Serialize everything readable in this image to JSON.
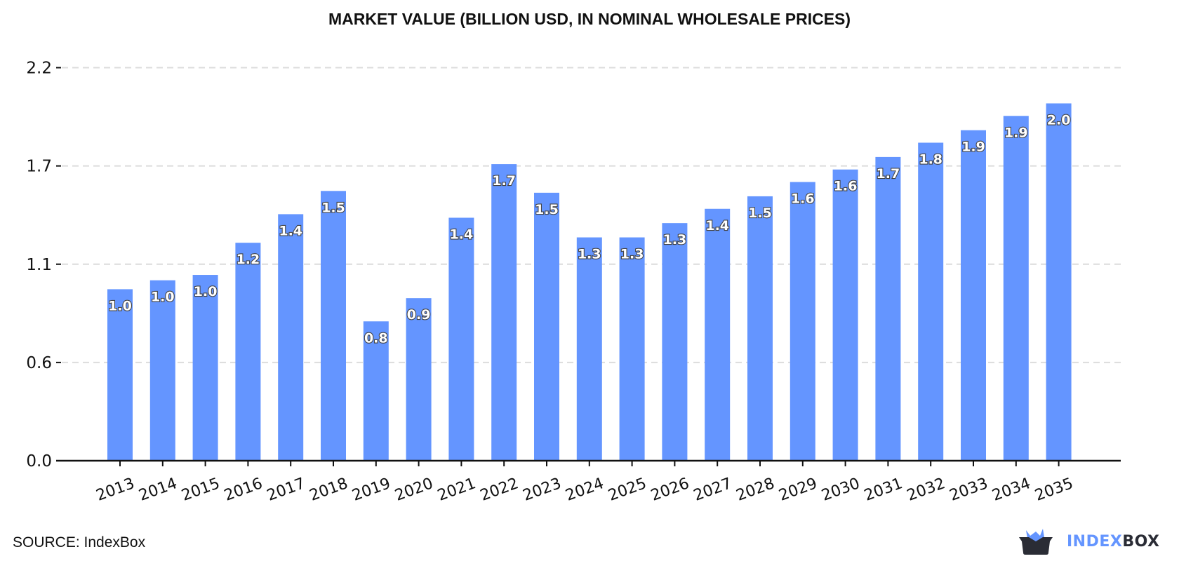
{
  "chart_data": {
    "type": "bar",
    "title": "MARKET VALUE (BILLION USD, IN NOMINAL WHOLESALE PRICES)",
    "xlabel": "",
    "ylabel": "",
    "categories": [
      "2013",
      "2014",
      "2015",
      "2016",
      "2017",
      "2018",
      "2019",
      "2020",
      "2021",
      "2022",
      "2023",
      "2024",
      "2025",
      "2026",
      "2027",
      "2028",
      "2029",
      "2030",
      "2031",
      "2032",
      "2033",
      "2034",
      "2035"
    ],
    "values": [
      0.96,
      1.01,
      1.04,
      1.22,
      1.38,
      1.51,
      0.78,
      0.91,
      1.36,
      1.66,
      1.5,
      1.25,
      1.25,
      1.33,
      1.41,
      1.48,
      1.56,
      1.63,
      1.7,
      1.78,
      1.85,
      1.93,
      2.0
    ],
    "data_labels": [
      "1.0",
      "1.0",
      "1.0",
      "1.2",
      "1.4",
      "1.5",
      "0.8",
      "0.9",
      "1.4",
      "1.7",
      "1.5",
      "1.3",
      "1.3",
      "1.3",
      "1.4",
      "1.5",
      "1.6",
      "1.6",
      "1.7",
      "1.8",
      "1.9",
      "1.9",
      "2.0"
    ],
    "yticks": [
      0,
      0.55,
      1.1,
      1.65,
      2.2
    ],
    "ytick_labels": [
      "0.0",
      "0.6",
      "1.1",
      "1.7",
      "2.2"
    ],
    "ylim": [
      0,
      2.2
    ],
    "grid": "horizontal dashed",
    "bar_color": "#6495ff"
  },
  "source": "SOURCE: IndexBox",
  "logo": {
    "part1": "INDEX",
    "part2": "BOX",
    "color1": "#6495ff",
    "color2": "#2a2c35"
  }
}
